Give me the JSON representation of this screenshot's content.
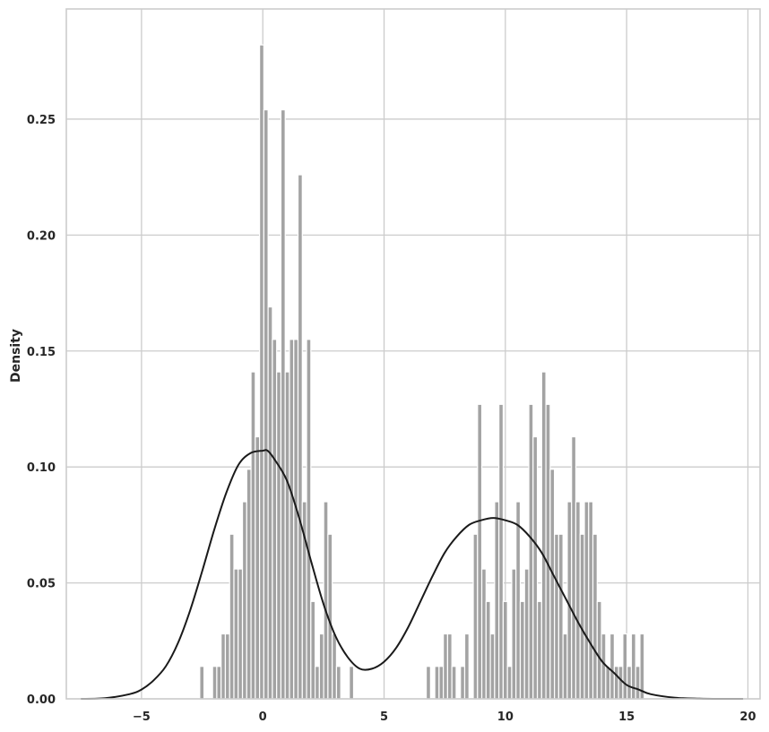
{
  "chart_data": {
    "type": "histogram",
    "xlabel": "",
    "ylabel": "Density",
    "xlim": [
      -8.1,
      20.5
    ],
    "ylim": [
      0,
      0.2975
    ],
    "xticks": [
      -5,
      0,
      5,
      10,
      15,
      20
    ],
    "xtick_labels": [
      "−5",
      "0",
      "5",
      "10",
      "15",
      "20"
    ],
    "yticks": [
      0.0,
      0.05,
      0.1,
      0.15,
      0.2,
      0.25
    ],
    "ytick_labels": [
      "0.00",
      "0.05",
      "0.10",
      "0.15",
      "0.20",
      "0.25"
    ],
    "grid": true,
    "colors": {
      "bars": "#a3a3a3",
      "kde": "#1a1a1a",
      "grid": "#cccccc",
      "frame": "#cccccc",
      "text": "#262626"
    },
    "histogram": {
      "bin_start": -2.6,
      "bin_width": 0.1762,
      "densities": [
        0.014,
        0,
        0,
        0.014,
        0.014,
        0.028,
        0.028,
        0.071,
        0.056,
        0.056,
        0.085,
        0.099,
        0.141,
        0.113,
        0.282,
        0.254,
        0.169,
        0.155,
        0.141,
        0.254,
        0.141,
        0.155,
        0.155,
        0.226,
        0.085,
        0.155,
        0.042,
        0.014,
        0.028,
        0.085,
        0.071,
        0.028,
        0.014,
        0,
        0,
        0.014,
        0,
        0,
        0,
        0,
        0,
        0,
        0,
        0,
        0,
        0,
        0,
        0,
        0,
        0,
        0,
        0,
        0,
        0.014,
        0,
        0.014,
        0.014,
        0.028,
        0.028,
        0.014,
        0,
        0.014,
        0.028,
        0,
        0.071,
        0.127,
        0.056,
        0.042,
        0.028,
        0.085,
        0.127,
        0.042,
        0.014,
        0.056,
        0.085,
        0.042,
        0.056,
        0.127,
        0.113,
        0.042,
        0.141,
        0.127,
        0.099,
        0.071,
        0.071,
        0.028,
        0.085,
        0.113,
        0.085,
        0.071,
        0.085,
        0.085,
        0.071,
        0.042,
        0.028,
        0.014,
        0.028,
        0.014,
        0.014,
        0.028,
        0.014,
        0.028,
        0.014,
        0.028
      ]
    },
    "kde": {
      "x": [
        -7.5,
        -6.5,
        -5.5,
        -5,
        -4.5,
        -4,
        -3.5,
        -3,
        -2.5,
        -2,
        -1.5,
        -1,
        -0.5,
        0,
        0.2,
        0.5,
        1,
        1.5,
        2,
        2.5,
        3,
        3.5,
        4,
        4.5,
        5,
        5.5,
        6,
        6.5,
        7,
        7.5,
        8,
        8.5,
        9,
        9.5,
        10,
        10.5,
        11,
        11.5,
        12,
        12.5,
        13,
        13.5,
        14,
        14.5,
        15,
        15.5,
        16,
        17,
        18,
        19,
        19.8
      ],
      "y": [
        0.0,
        0.0003,
        0.002,
        0.004,
        0.008,
        0.014,
        0.024,
        0.038,
        0.055,
        0.073,
        0.089,
        0.101,
        0.106,
        0.107,
        0.107,
        0.103,
        0.094,
        0.078,
        0.059,
        0.041,
        0.027,
        0.018,
        0.013,
        0.013,
        0.016,
        0.022,
        0.031,
        0.042,
        0.053,
        0.063,
        0.07,
        0.075,
        0.077,
        0.078,
        0.077,
        0.075,
        0.07,
        0.063,
        0.053,
        0.043,
        0.033,
        0.024,
        0.016,
        0.011,
        0.006,
        0.004,
        0.002,
        0.0005,
        0.0001,
        0.0,
        0.0
      ]
    }
  }
}
